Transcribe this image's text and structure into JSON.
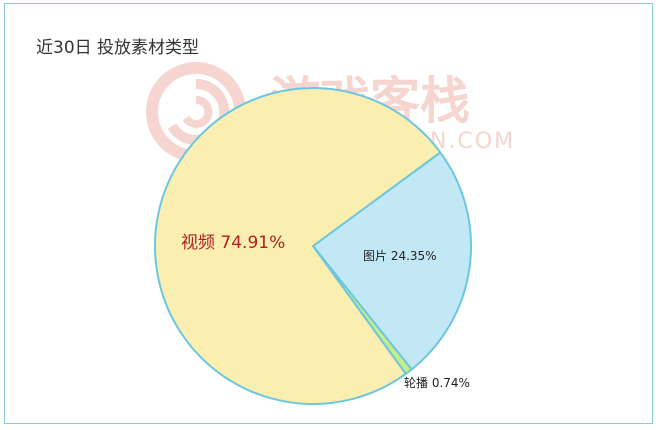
{
  "page": {
    "title": "近30日 投放素材类型"
  },
  "watermark": {
    "brand_cn": "游戏客栈",
    "brand_en": "GAMEKEZHAN.COM",
    "color": "#f3c6bf"
  },
  "chart_data": {
    "type": "pie",
    "title": "近30日 投放素材类型",
    "slices": [
      {
        "label": "视频",
        "value": 74.91,
        "display": "视频 74.91%",
        "color": "#faeeb0",
        "label_color": "#b22222"
      },
      {
        "label": "图片",
        "value": 24.35,
        "display": "图片 24.35%",
        "color": "#c2e8f5",
        "label_color": "#222222"
      },
      {
        "label": "轮播",
        "value": 0.74,
        "display": "轮播 0.74%",
        "color": "#c8ec8a",
        "label_color": "#222222"
      }
    ],
    "stroke_color": "#6cc6e0",
    "legend": "none"
  }
}
